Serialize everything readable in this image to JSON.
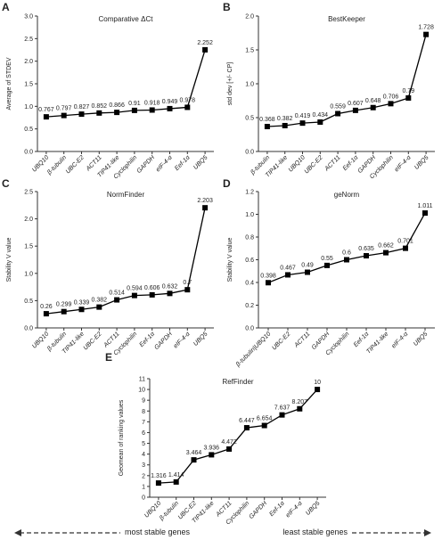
{
  "chart_data": [
    {
      "type": "line",
      "label": "A",
      "title": "Comparative ΔCt",
      "ylabel": "Average of STDEV",
      "color": "#000000",
      "categories": [
        "UBQ10",
        "β-tubulin",
        "UBC-E2",
        "ACT11",
        "TIP41-like",
        "Cyclophilin",
        "GAPDH",
        "eIF-4-α",
        "Eef-1α",
        "UBQ5"
      ],
      "values": [
        0.767,
        0.797,
        0.827,
        0.852,
        0.866,
        0.91,
        0.918,
        0.949,
        0.978,
        2.252
      ],
      "ylim": [
        0,
        3
      ],
      "yticks": [
        {
          "value": 0,
          "label": "0.0"
        },
        {
          "value": 0.5,
          "label": "0.5"
        },
        {
          "value": 1,
          "label": "1.0"
        },
        {
          "value": 1.5,
          "label": "1.5"
        },
        {
          "value": 2,
          "label": "2.0"
        },
        {
          "value": 2.5,
          "label": "2.5"
        },
        {
          "value": 3,
          "label": "3.0"
        }
      ]
    },
    {
      "type": "line",
      "label": "B",
      "title": "BestKeeper",
      "ylabel": "std dev [+/- CP]",
      "color": "#000000",
      "categories": [
        "β-tubulin",
        "TIP41-like",
        "UBQ10",
        "UBC-E2",
        "ACT11",
        "Eef-1α",
        "GAPDH",
        "Cyclophilin",
        "eIF-4-α",
        "UBQ5"
      ],
      "values": [
        0.368,
        0.382,
        0.419,
        0.434,
        0.559,
        0.607,
        0.648,
        0.706,
        0.79,
        1.728
      ],
      "ylim": [
        0,
        2
      ],
      "yticks": [
        {
          "value": 0,
          "label": "0.0"
        },
        {
          "value": 0.5,
          "label": "0.5"
        },
        {
          "value": 1,
          "label": "1.0"
        },
        {
          "value": 1.5,
          "label": "1.5"
        },
        {
          "value": 2,
          "label": "2.0"
        }
      ]
    },
    {
      "type": "line",
      "label": "C",
      "title": "NormFinder",
      "ylabel": "Stability V value",
      "color": "#000000",
      "categories": [
        "UBQ10",
        "β-tubulin",
        "TIP41-like",
        "UBC-E2",
        "ACT11",
        "Cyclophilin",
        "Eef-1α",
        "GAPDH",
        "eIF-4-α",
        "UBQ5"
      ],
      "values": [
        0.26,
        0.299,
        0.339,
        0.382,
        0.514,
        0.594,
        0.606,
        0.632,
        0.7,
        2.203
      ],
      "ylim": [
        0,
        2.5
      ],
      "yticks": [
        {
          "value": 0,
          "label": "0.0"
        },
        {
          "value": 0.5,
          "label": "0.5"
        },
        {
          "value": 1,
          "label": "1.0"
        },
        {
          "value": 1.5,
          "label": "1.5"
        },
        {
          "value": 2,
          "label": "2.0"
        },
        {
          "value": 2.5,
          "label": "2.5"
        }
      ]
    },
    {
      "type": "line",
      "label": "D",
      "title": "geNorm",
      "ylabel": "Stability V value",
      "color": "#000000",
      "categories": [
        "β-tubulin|UBQ10",
        "UBC-E2",
        "ACT11",
        "GAPDH",
        "Cyclophilin",
        "Eef-1α",
        "TIP41-like",
        "eIF-4-α",
        "UBQ5"
      ],
      "values": [
        0.398,
        0.467,
        0.49,
        0.55,
        0.6,
        0.635,
        0.662,
        0.701,
        1.011
      ],
      "ylim": [
        0,
        1.2
      ],
      "yticks": [
        {
          "value": 0,
          "label": "0.0"
        },
        0.2,
        0.4,
        0.6,
        0.8,
        {
          "value": 1,
          "label": "1.0"
        },
        1.2
      ]
    },
    {
      "type": "line",
      "label": "E",
      "title": "RefFinder",
      "ylabel": "Geomean of ranking values",
      "color": "#000000",
      "categories": [
        "UBQ10",
        "β-tubulin",
        "UBC-E2",
        "TIP41-like",
        "ACT11",
        "Cyclophilin",
        "GAPDH",
        "Eef-1α",
        "eIF-4-α",
        "UBQ5"
      ],
      "values": [
        1.316,
        1.414,
        3.464,
        3.936,
        4.472,
        6.447,
        6.654,
        7.637,
        8.207,
        10
      ],
      "ylim": [
        0,
        11
      ],
      "yticks": [
        0,
        1,
        2,
        3,
        4,
        5,
        6,
        7,
        8,
        9,
        10,
        11
      ]
    }
  ],
  "footer": {
    "left": "most stable genes",
    "right": "least stable genes"
  }
}
